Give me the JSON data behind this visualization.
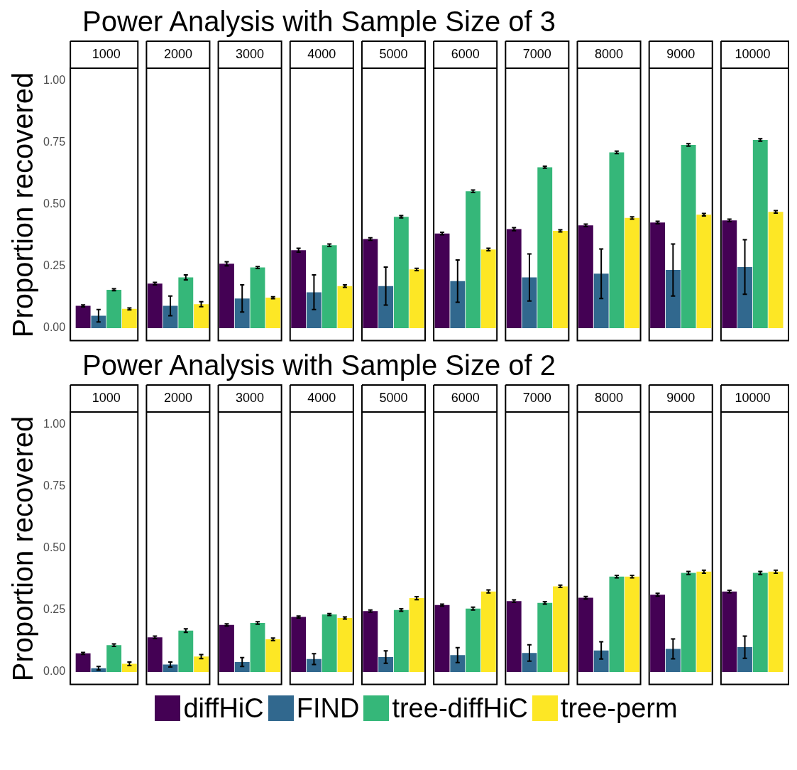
{
  "chart_data": [
    {
      "type": "bar",
      "title": "Power Analysis with Sample Size of 3",
      "ylabel": "Proportion recovered",
      "categories": [
        "1000",
        "2000",
        "3000",
        "4000",
        "5000",
        "6000",
        "7000",
        "8000",
        "9000",
        "10000"
      ],
      "ylim": [
        -0.05,
        1.05
      ],
      "yticks": [
        {
          "value": 0,
          "label": "0.00"
        },
        {
          "value": 0.25,
          "label": "0.25"
        },
        {
          "value": 0.5,
          "label": "0.50"
        },
        {
          "value": 0.75,
          "label": "0.75"
        },
        {
          "value": 1,
          "label": "1.00"
        }
      ],
      "grid": false,
      "tick_labels": "y",
      "legend": false,
      "series": [
        {
          "color": "#440154",
          "values": [
            0.09,
            0.18,
            0.26,
            0.315,
            0.36,
            0.382,
            0.4,
            0.415,
            0.427,
            0.435
          ],
          "errors": [
            0.004,
            0.005,
            0.008,
            0.008,
            0.005,
            0.005,
            0.006,
            0.005,
            0.005,
            0.005
          ]
        },
        {
          "color": "#31688e",
          "values": [
            0.05,
            0.09,
            0.12,
            0.145,
            0.17,
            0.19,
            0.205,
            0.22,
            0.235,
            0.247
          ],
          "errors": [
            0.025,
            0.04,
            0.055,
            0.07,
            0.077,
            0.085,
            0.095,
            0.1,
            0.105,
            0.11
          ]
        },
        {
          "color": "#35b779",
          "values": [
            0.155,
            0.205,
            0.245,
            0.335,
            0.45,
            0.553,
            0.65,
            0.71,
            0.74,
            0.76
          ],
          "errors": [
            0.004,
            0.01,
            0.004,
            0.005,
            0.005,
            0.005,
            0.004,
            0.005,
            0.005,
            0.005
          ]
        },
        {
          "color": "#fde725",
          "values": [
            0.078,
            0.097,
            0.123,
            0.17,
            0.237,
            0.318,
            0.393,
            0.445,
            0.458,
            0.47
          ],
          "errors": [
            0.004,
            0.01,
            0.004,
            0.005,
            0.005,
            0.005,
            0.004,
            0.005,
            0.005,
            0.005
          ]
        }
      ]
    },
    {
      "type": "bar",
      "title": "Power Analysis with Sample Size of 2",
      "ylabel": "Proportion recovered",
      "categories": [
        "1000",
        "2000",
        "3000",
        "4000",
        "5000",
        "6000",
        "7000",
        "8000",
        "9000",
        "10000"
      ],
      "ylim": [
        -0.05,
        1.05
      ],
      "yticks": [
        {
          "value": 0,
          "label": "0.00"
        },
        {
          "value": 0.25,
          "label": "0.25"
        },
        {
          "value": 0.5,
          "label": "0.50"
        },
        {
          "value": 0.75,
          "label": "0.75"
        },
        {
          "value": 1,
          "label": "1.00"
        }
      ],
      "grid": false,
      "tick_labels": "y",
      "legend": "bottom",
      "series": [
        {
          "name": "diffHiC",
          "color": "#440154",
          "values": [
            0.075,
            0.14,
            0.19,
            0.222,
            0.246,
            0.27,
            0.286,
            0.3,
            0.312,
            0.325
          ],
          "errors": [
            0.004,
            0.005,
            0.004,
            0.004,
            0.004,
            0.004,
            0.005,
            0.005,
            0.006,
            0.005
          ]
        },
        {
          "name": "FIND",
          "color": "#31688e",
          "values": [
            0.015,
            0.03,
            0.04,
            0.052,
            0.06,
            0.068,
            0.077,
            0.087,
            0.093,
            0.1
          ],
          "errors": [
            0.007,
            0.01,
            0.018,
            0.022,
            0.025,
            0.03,
            0.033,
            0.035,
            0.04,
            0.045
          ]
        },
        {
          "name": "tree-diffHiC",
          "color": "#35b779",
          "values": [
            0.108,
            0.167,
            0.198,
            0.232,
            0.25,
            0.256,
            0.279,
            0.385,
            0.4,
            0.4
          ],
          "errors": [
            0.005,
            0.007,
            0.005,
            0.004,
            0.005,
            0.006,
            0.005,
            0.005,
            0.006,
            0.006
          ]
        },
        {
          "name": "tree-perm",
          "color": "#fde725",
          "values": [
            0.033,
            0.062,
            0.132,
            0.218,
            0.298,
            0.325,
            0.346,
            0.385,
            0.405,
            0.405
          ],
          "errors": [
            0.007,
            0.008,
            0.005,
            0.004,
            0.006,
            0.006,
            0.005,
            0.005,
            0.006,
            0.006
          ]
        }
      ]
    }
  ]
}
